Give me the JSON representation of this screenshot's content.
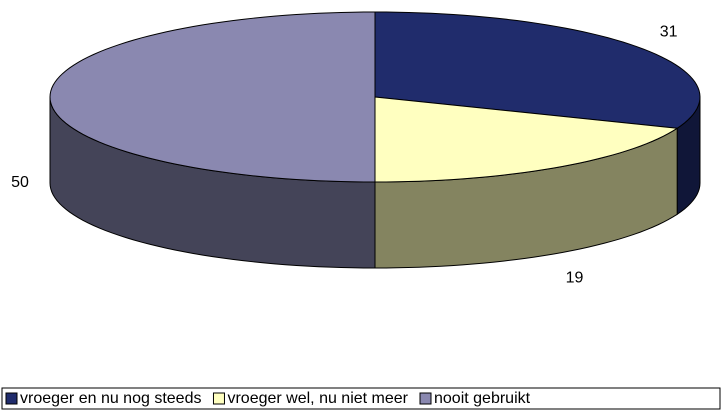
{
  "chart_data": {
    "type": "pie",
    "categories": [
      "vroeger en nu nog steeds",
      "vroeger wel, nu niet meer",
      "nooit gebruikt"
    ],
    "values": [
      31,
      19,
      50
    ],
    "colors": [
      "#202c6c",
      "#ffffc0",
      "#8a88b0"
    ],
    "side_colors": [
      "#101638",
      "#848460",
      "#444458"
    ],
    "legend": "bottom"
  }
}
